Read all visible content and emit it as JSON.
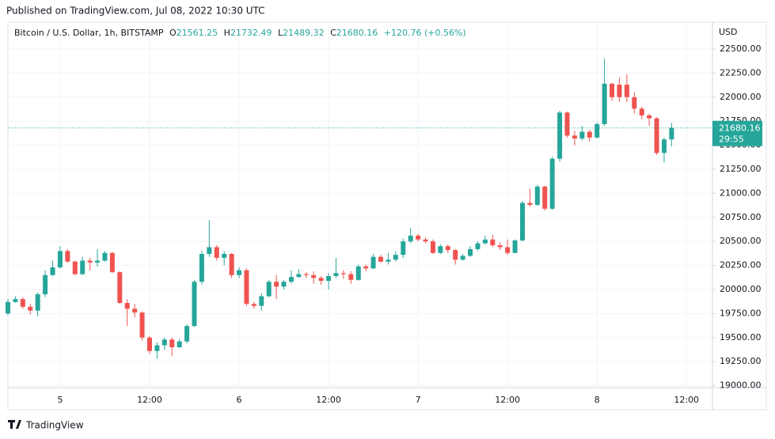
{
  "header": {
    "published": "Published on TradingView.com, Jul 08, 2022 10:30 UTC"
  },
  "footer": {
    "brand": "TradingView"
  },
  "chart_data": {
    "type": "candlestick",
    "title": "Bitcoin / U.S. Dollar, 1h, BITSTAMP",
    "ohlc_keys": [
      "O",
      "H",
      "L",
      "C"
    ],
    "change_label": "+120.76 (+0.56%)",
    "currency": "USD",
    "countdown": "29:55",
    "up_color": "#26a69a",
    "down_color": "#ef5350",
    "grid": true,
    "xtick_labels": [
      "5",
      "12:00",
      "6",
      "12:00",
      "7",
      "12:00",
      "8",
      "12:00"
    ],
    "ylim": [
      18980,
      22780
    ],
    "yticks": [
      {
        "value": 19000,
        "label": "19000.00"
      },
      {
        "value": 19250,
        "label": "19250.00"
      },
      {
        "value": 19500,
        "label": "19500.00"
      },
      {
        "value": 19750,
        "label": "19750.00"
      },
      {
        "value": 20000,
        "label": "20000.00"
      },
      {
        "value": 20250,
        "label": "20250.00"
      },
      {
        "value": 20500,
        "label": "20500.00"
      },
      {
        "value": 20750,
        "label": "20750.00"
      },
      {
        "value": 21000,
        "label": "21000.00"
      },
      {
        "value": 21250,
        "label": "21250.00"
      },
      {
        "value": 21500,
        "label": "21500.00"
      },
      {
        "value": 21750,
        "label": "21750.00"
      },
      {
        "value": 22000,
        "label": "22000.00"
      },
      {
        "value": 22250,
        "label": "22250.00"
      },
      {
        "value": 22500,
        "label": "22500.00"
      }
    ],
    "open": [
      19750,
      19870,
      19900,
      19820,
      19780,
      19950,
      20150,
      20230,
      20400,
      20290,
      20160,
      20300,
      20280,
      20300,
      20380,
      20180,
      19860,
      19800,
      19760,
      19500,
      19360,
      19420,
      19480,
      19400,
      19460,
      19620,
      20080,
      20370,
      20440,
      20330,
      20370,
      20150,
      20200,
      19850,
      19830,
      19930,
      20080,
      20030,
      20080,
      20130,
      20160,
      20150,
      20120,
      20090,
      20140,
      20170,
      20160,
      20100,
      20240,
      20220,
      20340,
      20290,
      20310,
      20360,
      20500,
      20560,
      20520,
      20500,
      20380,
      20450,
      20410,
      20310,
      20350,
      20420,
      20480,
      20520,
      20460,
      20440,
      20380,
      20510,
      20900,
      20880,
      21070,
      20840,
      21360,
      21840,
      21600,
      21570,
      21640,
      21580,
      21720,
      22140,
      22130,
      22130,
      22000,
      21880,
      21810,
      21780,
      21420,
      21561.25
    ],
    "high": [
      19900,
      19930,
      19920,
      19850,
      19970,
      20200,
      20300,
      20450,
      20420,
      20300,
      20340,
      20330,
      20420,
      20400,
      20390,
      20190,
      19900,
      19850,
      19770,
      19520,
      19450,
      19500,
      19500,
      19480,
      19640,
      20100,
      20400,
      20720,
      20460,
      20400,
      20380,
      20230,
      20220,
      19870,
      19960,
      20100,
      20150,
      20100,
      20200,
      20210,
      20180,
      20190,
      20140,
      20170,
      20330,
      20200,
      20190,
      20260,
      20260,
      20370,
      20360,
      20380,
      20400,
      20530,
      20640,
      20580,
      20540,
      20520,
      20470,
      20470,
      20420,
      20370,
      20450,
      20500,
      20560,
      20570,
      20490,
      20520,
      20520,
      20920,
      21050,
      21090,
      21080,
      21380,
      21860,
      21850,
      21650,
      21700,
      21660,
      21740,
      22400,
      22150,
      22200,
      22240,
      22050,
      21900,
      21830,
      21790,
      21580,
      21732.49
    ],
    "low": [
      19730,
      19860,
      19800,
      19740,
      19720,
      19920,
      20140,
      20220,
      20280,
      20150,
      20150,
      20200,
      20240,
      20290,
      20170,
      19850,
      19620,
      19710,
      19470,
      19330,
      19280,
      19370,
      19310,
      19390,
      19440,
      19610,
      20050,
      20340,
      20300,
      20250,
      20120,
      20120,
      19830,
      19800,
      19780,
      19920,
      19900,
      20000,
      20060,
      20120,
      20120,
      20060,
      20050,
      20000,
      20120,
      20110,
      20060,
      20090,
      20190,
      20210,
      20280,
      20260,
      20290,
      20330,
      20480,
      20500,
      20480,
      20370,
      20370,
      20380,
      20260,
      20300,
      20340,
      20400,
      20470,
      20440,
      20410,
      20360,
      20380,
      20500,
      20860,
      20870,
      20820,
      20830,
      21330,
      21580,
      21500,
      21550,
      21540,
      21570,
      21700,
      21960,
      21950,
      21950,
      21830,
      21770,
      21700,
      21400,
      21320,
      21489.32
    ],
    "close": [
      19870,
      19900,
      19820,
      19780,
      19950,
      20150,
      20230,
      20400,
      20290,
      20160,
      20300,
      20280,
      20300,
      20380,
      20180,
      19860,
      19800,
      19760,
      19500,
      19360,
      19420,
      19480,
      19400,
      19460,
      19620,
      20080,
      20370,
      20440,
      20330,
      20370,
      20150,
      20200,
      19850,
      19830,
      19930,
      20080,
      20030,
      20080,
      20130,
      20160,
      20150,
      20120,
      20090,
      20140,
      20170,
      20160,
      20100,
      20240,
      20220,
      20340,
      20290,
      20310,
      20360,
      20500,
      20560,
      20520,
      20500,
      20380,
      20450,
      20410,
      20310,
      20350,
      20420,
      20480,
      20520,
      20460,
      20440,
      20380,
      20510,
      20900,
      20880,
      21070,
      20840,
      21360,
      21840,
      21600,
      21570,
      21640,
      21580,
      21720,
      22140,
      22000,
      22000,
      22000,
      21880,
      21810,
      21780,
      21420,
      21560,
      21680.16
    ]
  }
}
